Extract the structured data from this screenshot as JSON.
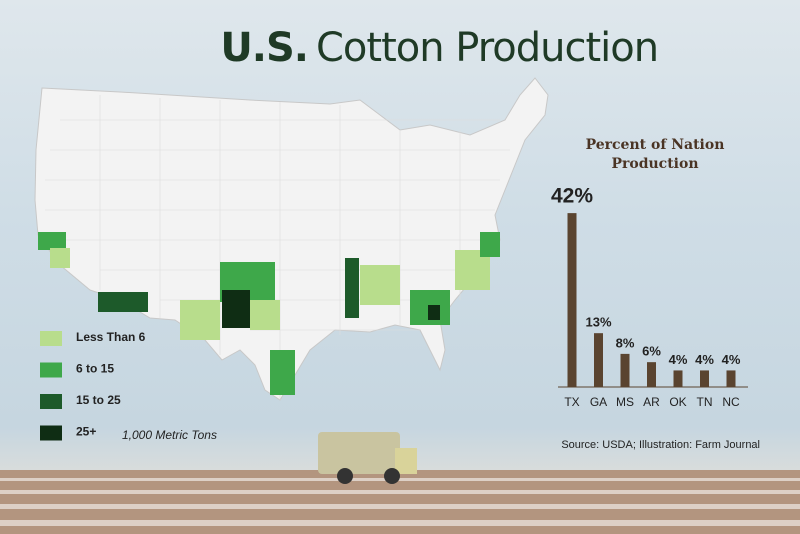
{
  "title": [
    "U.S.",
    "Cotton Production"
  ],
  "map_legend": {
    "items": [
      {
        "label": "Less Than 6",
        "color": "#b8dd8c"
      },
      {
        "label": "6 to 15",
        "color": "#3ea84a"
      },
      {
        "label": "15 to 25",
        "color": "#1d5a2a"
      },
      {
        "label": "25+",
        "color": "#0f2d14"
      }
    ],
    "unit": "1,000 Metric Tons"
  },
  "chart_data": {
    "type": "bar",
    "title": "Percent of Nation Production",
    "categories": [
      "TX",
      "GA",
      "MS",
      "AR",
      "OK",
      "TN",
      "NC"
    ],
    "values": [
      42,
      13,
      8,
      6,
      4,
      4,
      4
    ],
    "value_labels": [
      "42%",
      "13%",
      "8%",
      "6%",
      "4%",
      "4%",
      "4%"
    ],
    "color": "#5a4430"
  },
  "source": "Source: USDA; Illustration: Farm Journal"
}
